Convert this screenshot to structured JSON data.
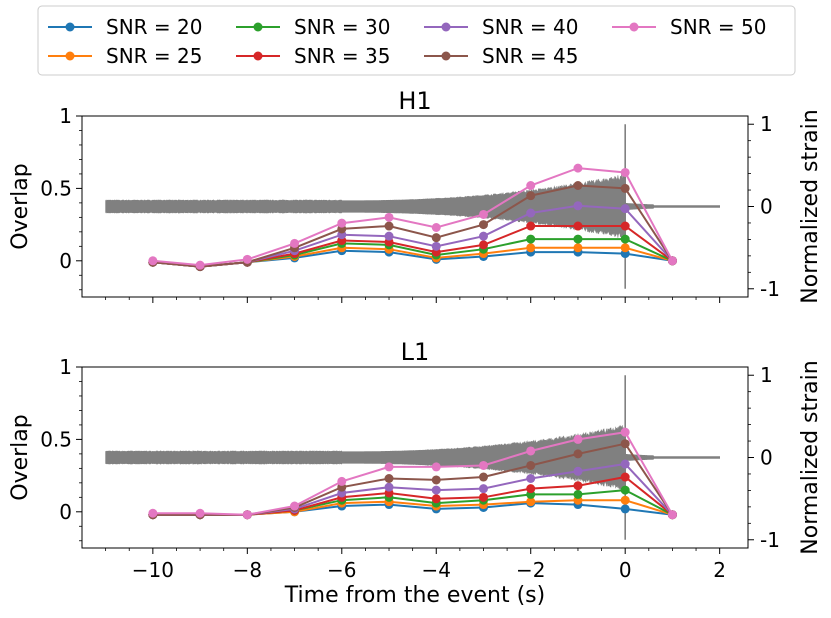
{
  "chart_data": {
    "type": "line",
    "legend": {
      "placement": "top",
      "entries": [
        "SNR = 20",
        "SNR = 25",
        "SNR = 30",
        "SNR = 35",
        "SNR = 40",
        "SNR = 45",
        "SNR = 50"
      ]
    },
    "xlabel": "Time from the event (s)",
    "xlim": [
      -11.5,
      2.6
    ],
    "xticks": [
      -10,
      -8,
      -6,
      -4,
      -2,
      0,
      2
    ],
    "colors": {
      "SNR = 20": "#1f77b4",
      "SNR = 25": "#ff7f0e",
      "SNR = 30": "#2ca02c",
      "SNR = 35": "#d62728",
      "SNR = 40": "#9467bd",
      "SNR = 45": "#8c564b",
      "SNR = 50": "#e377c2",
      "strain": "#808080"
    },
    "x": [
      -10,
      -9,
      -8,
      -7,
      -6,
      -5,
      -4,
      -3,
      -2,
      -1,
      0,
      1
    ],
    "panels": [
      {
        "title": "H1",
        "ylabel": "Overlap",
        "ylim": [
          -0.25,
          1.0
        ],
        "yticks": [
          0.0,
          0.5,
          1.0
        ],
        "ylabel_right": "Normalized strain",
        "ylim_right": [
          -1.1,
          1.1
        ],
        "yticks_right": [
          -1,
          0,
          1
        ],
        "grid": false,
        "series": [
          {
            "name": "SNR = 20",
            "values": [
              -0.01,
              -0.04,
              -0.01,
              0.02,
              0.07,
              0.06,
              0.01,
              0.03,
              0.06,
              0.06,
              0.05,
              0.0
            ]
          },
          {
            "name": "SNR = 25",
            "values": [
              -0.01,
              -0.04,
              -0.01,
              0.03,
              0.09,
              0.08,
              0.02,
              0.05,
              0.09,
              0.09,
              0.09,
              0.0
            ]
          },
          {
            "name": "SNR = 30",
            "values": [
              -0.01,
              -0.04,
              -0.01,
              0.04,
              0.12,
              0.11,
              0.04,
              0.08,
              0.15,
              0.15,
              0.15,
              0.0
            ]
          },
          {
            "name": "SNR = 35",
            "values": [
              -0.01,
              -0.04,
              -0.01,
              0.05,
              0.14,
              0.13,
              0.06,
              0.11,
              0.24,
              0.24,
              0.24,
              0.0
            ]
          },
          {
            "name": "SNR = 40",
            "values": [
              -0.01,
              -0.04,
              -0.01,
              0.07,
              0.18,
              0.17,
              0.1,
              0.17,
              0.33,
              0.38,
              0.36,
              0.0
            ]
          },
          {
            "name": "SNR = 45",
            "values": [
              -0.01,
              -0.04,
              -0.01,
              0.09,
              0.22,
              0.24,
              0.16,
              0.25,
              0.45,
              0.52,
              0.5,
              0.0
            ]
          },
          {
            "name": "SNR = 50",
            "values": [
              0.0,
              -0.03,
              0.01,
              0.12,
              0.26,
              0.3,
              0.23,
              0.32,
              0.52,
              0.64,
              0.61,
              0.0
            ]
          }
        ]
      },
      {
        "title": "L1",
        "ylabel": "Overlap",
        "ylim": [
          -0.25,
          1.0
        ],
        "yticks": [
          0.0,
          0.5,
          1.0
        ],
        "ylabel_right": "Normalized strain",
        "ylim_right": [
          -1.1,
          1.1
        ],
        "yticks_right": [
          -1,
          0,
          1
        ],
        "grid": false,
        "series": [
          {
            "name": "SNR = 20",
            "values": [
              -0.02,
              -0.02,
              -0.02,
              0.0,
              0.04,
              0.05,
              0.02,
              0.03,
              0.06,
              0.05,
              0.02,
              -0.02
            ]
          },
          {
            "name": "SNR = 25",
            "values": [
              -0.02,
              -0.02,
              -0.02,
              0.0,
              0.06,
              0.07,
              0.04,
              0.05,
              0.07,
              0.08,
              0.08,
              -0.02
            ]
          },
          {
            "name": "SNR = 30",
            "values": [
              -0.02,
              -0.02,
              -0.02,
              0.01,
              0.08,
              0.1,
              0.06,
              0.08,
              0.12,
              0.12,
              0.15,
              -0.02
            ]
          },
          {
            "name": "SNR = 35",
            "values": [
              -0.02,
              -0.02,
              -0.02,
              0.01,
              0.1,
              0.13,
              0.09,
              0.1,
              0.16,
              0.18,
              0.24,
              -0.02
            ]
          },
          {
            "name": "SNR = 40",
            "values": [
              -0.02,
              -0.02,
              -0.02,
              0.02,
              0.13,
              0.17,
              0.15,
              0.16,
              0.23,
              0.28,
              0.33,
              -0.02
            ]
          },
          {
            "name": "SNR = 45",
            "values": [
              -0.02,
              -0.02,
              -0.02,
              0.03,
              0.17,
              0.23,
              0.22,
              0.24,
              0.32,
              0.4,
              0.47,
              -0.02
            ]
          },
          {
            "name": "SNR = 50",
            "values": [
              -0.01,
              -0.01,
              -0.02,
              0.04,
              0.21,
              0.31,
              0.31,
              0.32,
              0.42,
              0.5,
              0.55,
              -0.02
            ]
          }
        ]
      }
    ]
  }
}
